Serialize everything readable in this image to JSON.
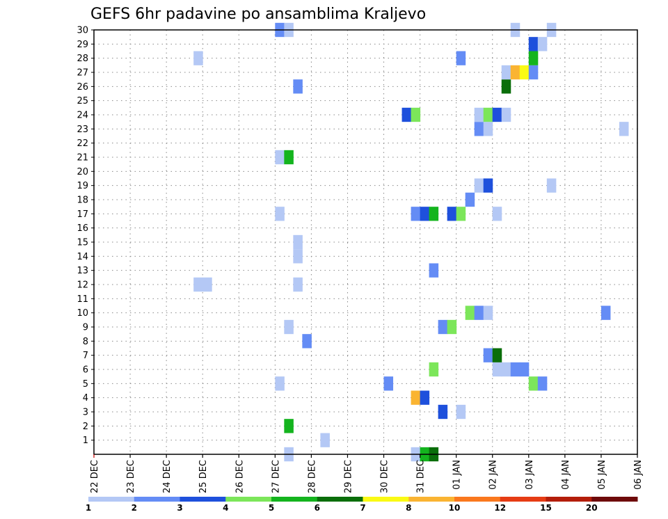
{
  "chart_data": {
    "type": "heatmap",
    "title": "GEFS 6hr padavine po ansamblima Kraljevo",
    "x_dates": [
      "22 DEC",
      "23 DEC",
      "24 DEC",
      "25 DEC",
      "26 DEC",
      "27 DEC",
      "28 DEC",
      "29 DEC",
      "30 DEC",
      "31 DEC",
      "01 JAN",
      "02 JAN",
      "03 JAN",
      "04 JAN",
      "05 JAN",
      "06 JAN"
    ],
    "y_members": [
      1,
      2,
      3,
      4,
      5,
      6,
      7,
      8,
      9,
      10,
      11,
      12,
      13,
      14,
      15,
      16,
      17,
      18,
      19,
      20,
      21,
      22,
      23,
      24,
      25,
      26,
      27,
      28,
      29,
      30
    ],
    "time_step_hours": 6,
    "grid": true,
    "colorbar": {
      "labels": [
        "1",
        "2",
        "3",
        "4",
        "5",
        "6",
        "7",
        "8",
        "10",
        "12",
        "15",
        "20"
      ],
      "colors": [
        "#b4c8f5",
        "#648cf5",
        "#1e50dc",
        "#7ce65a",
        "#14b41e",
        "#0a6e0a",
        "#fafa14",
        "#fab432",
        "#fa781e",
        "#e63c14",
        "#b41e0a",
        "#6e0a0a"
      ]
    },
    "cells": [
      {
        "member": 0,
        "time": "27 DEC 06",
        "value": 1.5
      },
      {
        "member": 0,
        "time": "30 DEC 18",
        "value": 1.5
      },
      {
        "member": 0,
        "time": "31 DEC 00",
        "value": 5
      },
      {
        "member": 0,
        "time": "31 DEC 06",
        "value": 6
      },
      {
        "member": 1,
        "time": "28 DEC 06",
        "value": 1.5
      },
      {
        "member": 2,
        "time": "27 DEC 06",
        "value": 5.5
      },
      {
        "member": 3,
        "time": "31 DEC 12",
        "value": 3.5
      },
      {
        "member": 3,
        "time": "01 JAN 00",
        "value": 1.5
      },
      {
        "member": 4,
        "time": "30 DEC 18",
        "value": 9
      },
      {
        "member": 4,
        "time": "31 DEC 00",
        "value": 3.5
      },
      {
        "member": 5,
        "time": "27 DEC 00",
        "value": 1.5
      },
      {
        "member": 5,
        "time": "30 DEC 00",
        "value": 2.5
      },
      {
        "member": 5,
        "time": "03 JAN 00",
        "value": 4.5
      },
      {
        "member": 5,
        "time": "03 JAN 06",
        "value": 2.5
      },
      {
        "member": 6,
        "time": "31 DEC 06",
        "value": 4.5
      },
      {
        "member": 6,
        "time": "02 JAN 00",
        "value": 1.5
      },
      {
        "member": 6,
        "time": "02 JAN 06",
        "value": 1.5
      },
      {
        "member": 6,
        "time": "02 JAN 12",
        "value": 2.5
      },
      {
        "member": 6,
        "time": "02 JAN 18",
        "value": 2.5
      },
      {
        "member": 7,
        "time": "01 JAN 18",
        "value": 2.5
      },
      {
        "member": 7,
        "time": "02 JAN 00",
        "value": 6.5
      },
      {
        "member": 8,
        "time": "27 DEC 18",
        "value": 2.5
      },
      {
        "member": 9,
        "time": "27 DEC 06",
        "value": 1.5
      },
      {
        "member": 9,
        "time": "31 DEC 12",
        "value": 2.5
      },
      {
        "member": 9,
        "time": "31 DEC 18",
        "value": 4.5
      },
      {
        "member": 10,
        "time": "01 JAN 06",
        "value": 4.5
      },
      {
        "member": 10,
        "time": "01 JAN 12",
        "value": 2.5
      },
      {
        "member": 10,
        "time": "01 JAN 18",
        "value": 1.5
      },
      {
        "member": 10,
        "time": "05 JAN 00",
        "value": 2.5
      },
      {
        "member": 12,
        "time": "24 DEC 18",
        "value": 1.5
      },
      {
        "member": 12,
        "time": "25 DEC 00",
        "value": 1.5
      },
      {
        "member": 12,
        "time": "27 DEC 12",
        "value": 1.5
      },
      {
        "member": 13,
        "time": "31 DEC 06",
        "value": 2.5
      },
      {
        "member": 14,
        "time": "27 DEC 12",
        "value": 1.5
      },
      {
        "member": 15,
        "time": "27 DEC 12",
        "value": 1.5
      },
      {
        "member": 17,
        "time": "27 DEC 00",
        "value": 1.5
      },
      {
        "member": 17,
        "time": "30 DEC 18",
        "value": 2.5
      },
      {
        "member": 17,
        "time": "31 DEC 00",
        "value": 3.5
      },
      {
        "member": 17,
        "time": "31 DEC 06",
        "value": 5.5
      },
      {
        "member": 17,
        "time": "31 DEC 18",
        "value": 3.5
      },
      {
        "member": 17,
        "time": "01 JAN 00",
        "value": 4.5
      },
      {
        "member": 17,
        "time": "02 JAN 00",
        "value": 1.5
      },
      {
        "member": 18,
        "time": "01 JAN 06",
        "value": 2.5
      },
      {
        "member": 19,
        "time": "01 JAN 12",
        "value": 1.5
      },
      {
        "member": 19,
        "time": "01 JAN 18",
        "value": 3.5
      },
      {
        "member": 19,
        "time": "03 JAN 12",
        "value": 1.5
      },
      {
        "member": 21,
        "time": "27 DEC 00",
        "value": 1.5
      },
      {
        "member": 21,
        "time": "27 DEC 06",
        "value": 5.5
      },
      {
        "member": 23,
        "time": "01 JAN 12",
        "value": 2.5
      },
      {
        "member": 23,
        "time": "01 JAN 18",
        "value": 1.5
      },
      {
        "member": 23,
        "time": "05 JAN 12",
        "value": 1.5
      },
      {
        "member": 24,
        "time": "30 DEC 12",
        "value": 3.5
      },
      {
        "member": 24,
        "time": "30 DEC 18",
        "value": 4.5
      },
      {
        "member": 24,
        "time": "01 JAN 12",
        "value": 1.5
      },
      {
        "member": 24,
        "time": "01 JAN 18",
        "value": 4.5
      },
      {
        "member": 24,
        "time": "02 JAN 00",
        "value": 3.5
      },
      {
        "member": 24,
        "time": "02 JAN 06",
        "value": 1.5
      },
      {
        "member": 26,
        "time": "27 DEC 12",
        "value": 2.5
      },
      {
        "member": 26,
        "time": "02 JAN 06",
        "value": 6.5
      },
      {
        "member": 27,
        "time": "02 JAN 06",
        "value": 1.5
      },
      {
        "member": 27,
        "time": "02 JAN 12",
        "value": 9
      },
      {
        "member": 27,
        "time": "02 JAN 18",
        "value": 7.5
      },
      {
        "member": 27,
        "time": "03 JAN 00",
        "value": 2.5
      },
      {
        "member": 28,
        "time": "24 DEC 18",
        "value": 1.5
      },
      {
        "member": 28,
        "time": "01 JAN 00",
        "value": 2.5
      },
      {
        "member": 28,
        "time": "03 JAN 00",
        "value": 5.5
      },
      {
        "member": 29,
        "time": "03 JAN 00",
        "value": 3.5
      },
      {
        "member": 29,
        "time": "03 JAN 06",
        "value": 1.5
      },
      {
        "member": 30,
        "time": "27 DEC 00",
        "value": 2.5
      },
      {
        "member": 30,
        "time": "27 DEC 06",
        "value": 1.5
      },
      {
        "member": 30,
        "time": "02 JAN 12",
        "value": 1.5
      },
      {
        "member": 30,
        "time": "03 JAN 12",
        "value": 1.5
      }
    ]
  }
}
